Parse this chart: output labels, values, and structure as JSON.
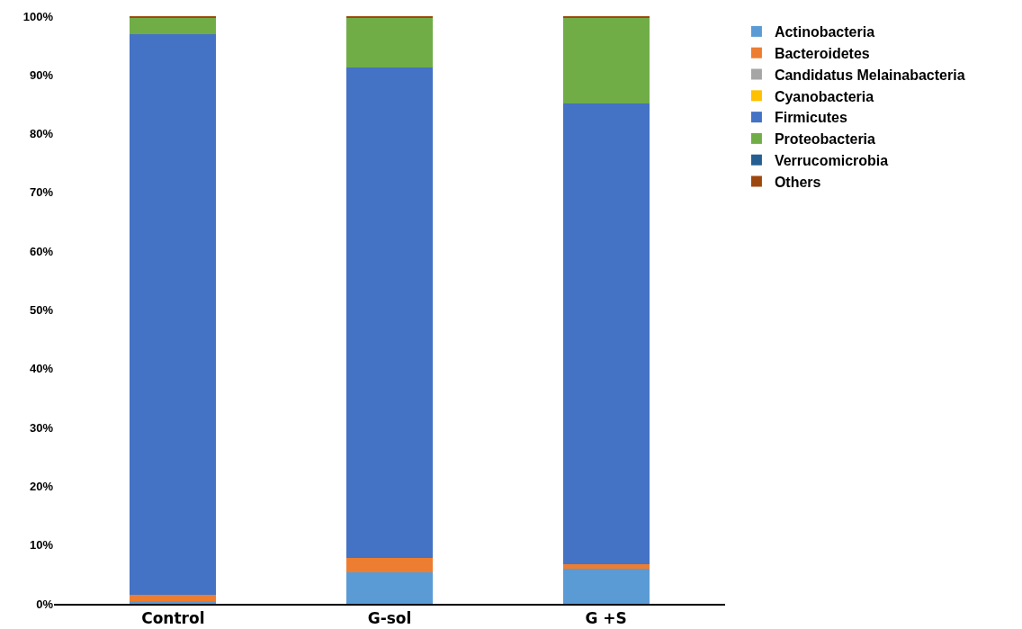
{
  "chart_data": {
    "type": "bar",
    "stacked": true,
    "categories": [
      "Control",
      "G-sol",
      "G +S"
    ],
    "series": [
      {
        "name": "Actinobacteria",
        "color": "#5b9bd5",
        "values": [
          0.5,
          5.4,
          6.0
        ]
      },
      {
        "name": "Bacteroidetes",
        "color": "#ed7d31",
        "values": [
          1.0,
          2.4,
          0.7
        ]
      },
      {
        "name": "Candidatus Melainabacteria",
        "color": "#a5a5a5",
        "values": [
          0,
          0,
          0
        ]
      },
      {
        "name": "Cyanobacteria",
        "color": "#ffc000",
        "values": [
          0,
          0,
          0
        ]
      },
      {
        "name": "Firmicutes",
        "color": "#4472c4",
        "values": [
          95.4,
          83.5,
          78.4
        ]
      },
      {
        "name": "Proteobacteria",
        "color": "#70ad47",
        "values": [
          2.8,
          8.4,
          14.6
        ]
      },
      {
        "name": "Verrucomicrobia",
        "color": "#255e91",
        "values": [
          0,
          0,
          0
        ]
      },
      {
        "name": "Others",
        "color": "#9e480e",
        "values": [
          0.3,
          0.3,
          0.3
        ]
      }
    ],
    "ylim": [
      0,
      100
    ],
    "yticks": [
      {
        "value": 0,
        "label": "0%"
      },
      {
        "value": 10,
        "label": "10%"
      },
      {
        "value": 20,
        "label": "20%"
      },
      {
        "value": 30,
        "label": "30%"
      },
      {
        "value": 40,
        "label": "40%"
      },
      {
        "value": 50,
        "label": "50%"
      },
      {
        "value": 60,
        "label": "60%"
      },
      {
        "value": 70,
        "label": "70%"
      },
      {
        "value": 80,
        "label": "80%"
      },
      {
        "value": 90,
        "label": "90%"
      },
      {
        "value": 100,
        "label": "100%"
      }
    ],
    "grid": false,
    "legend": "right"
  }
}
